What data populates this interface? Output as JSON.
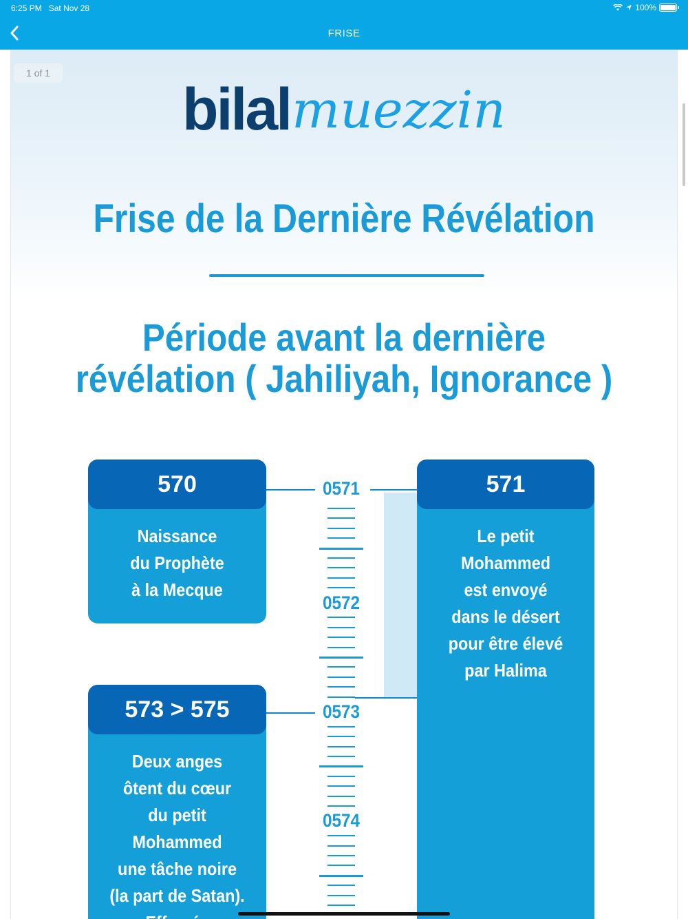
{
  "status_bar": {
    "time": "6:25 PM",
    "date": "Sat Nov 28",
    "battery": "100%",
    "icons": [
      "wifi-icon",
      "location-icon",
      "battery-icon"
    ]
  },
  "nav": {
    "title": "FRISE",
    "back_icon": "chevron-left-icon"
  },
  "document": {
    "page_indicator": "1 of 1",
    "logo": {
      "part1": "bilal",
      "part2": "muezzin"
    },
    "title": "Frise de la Dernière Révélation",
    "section_title_line1": "Période avant la dernière",
    "section_title_line2": "révélation ( Jahiliyah, Ignorance )",
    "timeline_years": [
      "0571",
      "0572",
      "0573",
      "0574"
    ],
    "events": [
      {
        "year": "570",
        "lines": [
          "Naissance",
          "du Prophète",
          "à la Mecque"
        ]
      },
      {
        "year": "571",
        "lines": [
          "Le petit",
          "Mohammed",
          "est envoyé",
          "dans le désert",
          "pour être élevé",
          "par Halima"
        ]
      },
      {
        "year": "573 > 575",
        "lines": [
          "Deux anges",
          "ôtent du cœur",
          "du petit",
          "Mohammed",
          "une tâche noire",
          "(la part de Satan).",
          "Effrayée"
        ]
      }
    ]
  },
  "colors": {
    "nav_bg": "#0aa7e6",
    "accent": "#1a9bd7",
    "card_head": "#0866b6",
    "card_body": "#149fd8",
    "logo_dark": "#0d3f6e"
  }
}
